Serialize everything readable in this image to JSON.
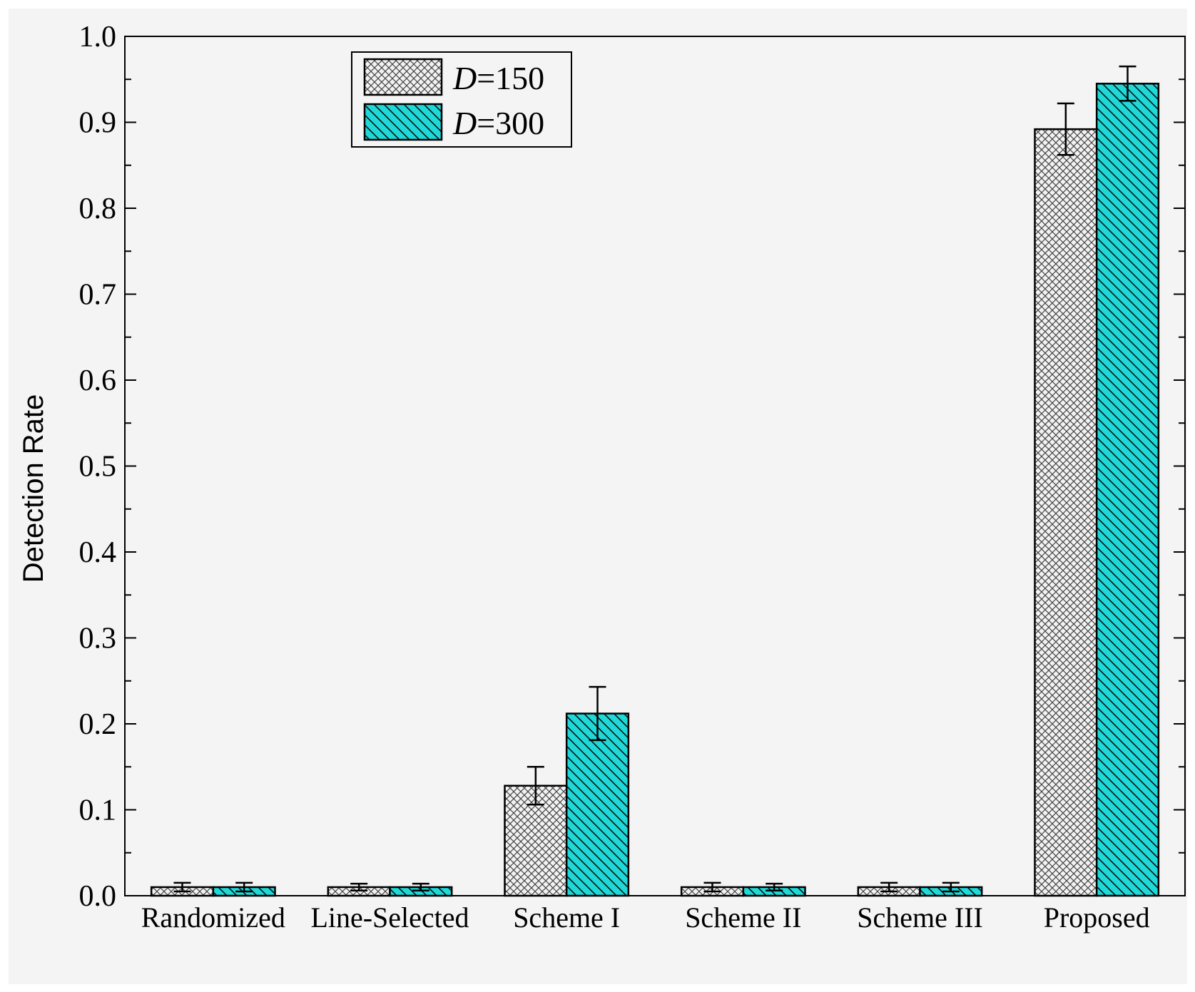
{
  "chart_data": {
    "type": "bar",
    "title": "",
    "xlabel": "",
    "ylabel": "Detection Rate",
    "ylim": [
      0,
      1.0
    ],
    "yticks": [
      "0.0",
      "0.1",
      "0.2",
      "0.3",
      "0.4",
      "0.5",
      "0.6",
      "0.7",
      "0.8",
      "0.9",
      "1.0"
    ],
    "categories": [
      "Randomized",
      "Line-Selected",
      "Scheme I",
      "Scheme II",
      "Scheme III",
      "Proposed"
    ],
    "series": [
      {
        "name_prefix": "D",
        "name_suffix": "=150",
        "values": [
          0.01,
          0.01,
          0.128,
          0.01,
          0.01,
          0.892
        ],
        "errors": [
          0.005,
          0.004,
          0.022,
          0.005,
          0.005,
          0.03
        ],
        "color": "#f2f2f2",
        "pattern": "crosshatch"
      },
      {
        "name_prefix": "D",
        "name_suffix": "=300",
        "values": [
          0.01,
          0.01,
          0.212,
          0.01,
          0.01,
          0.945
        ],
        "errors": [
          0.005,
          0.004,
          0.031,
          0.004,
          0.005,
          0.02
        ],
        "color": "#1fd8d8",
        "pattern": "diagonal"
      }
    ],
    "grid": false,
    "legend_position": "top-left",
    "background": "#f4f4f4"
  }
}
